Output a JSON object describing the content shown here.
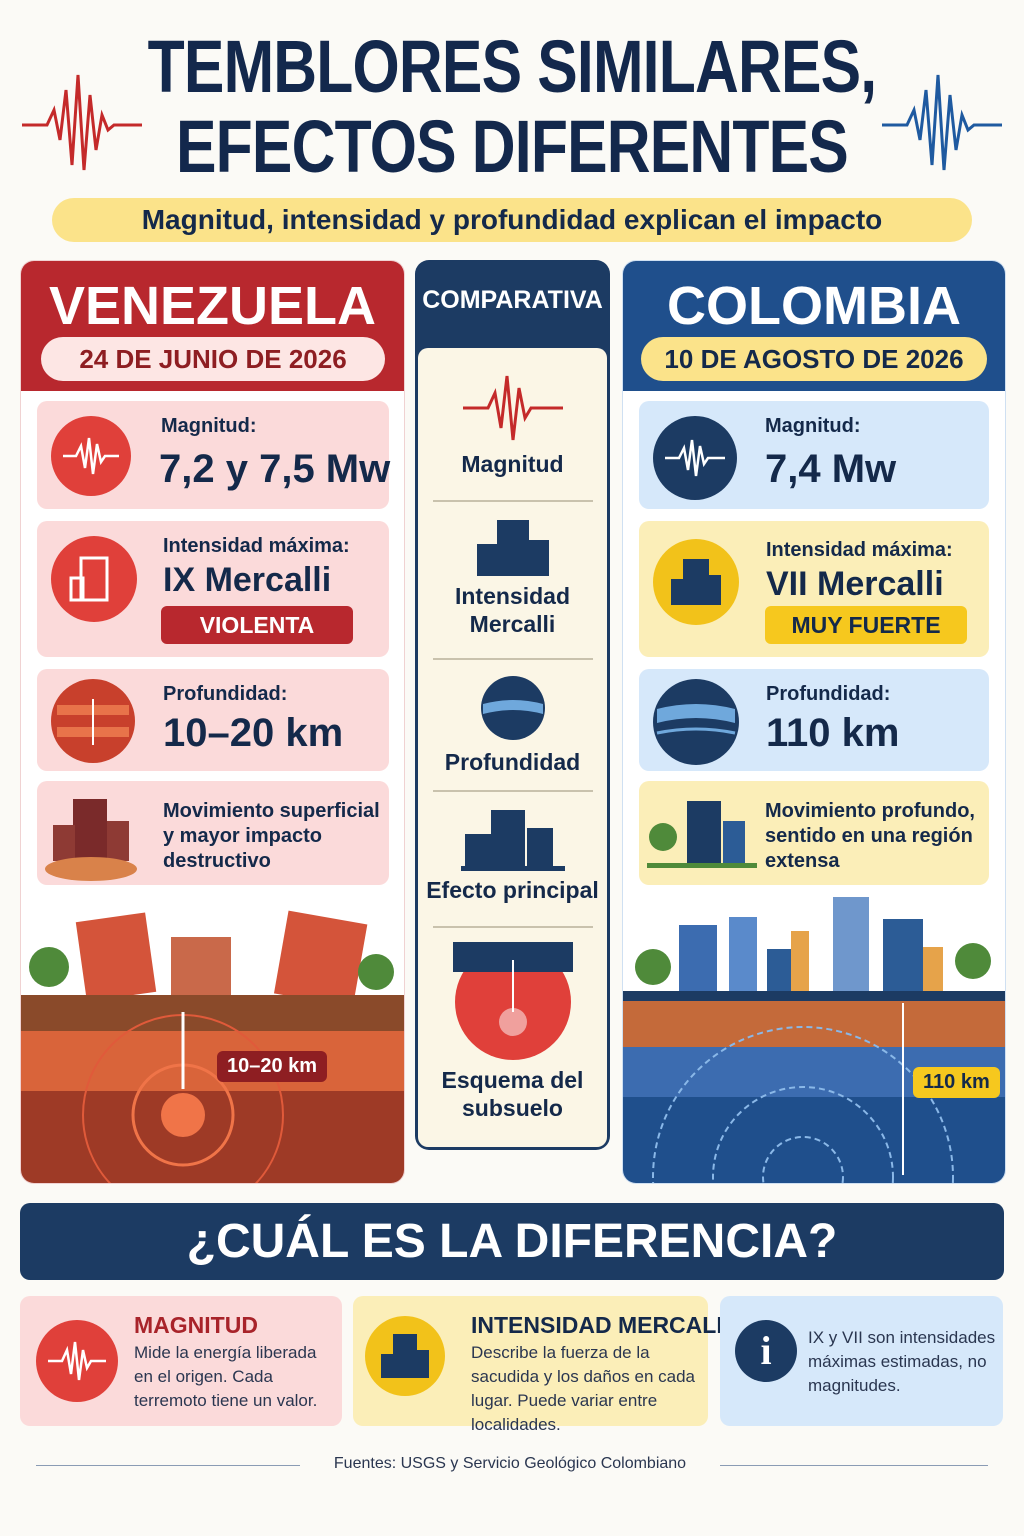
{
  "header": {
    "title_line1": "TEMBLORES SIMILARES,",
    "title_line2": "EFECTOS DIFERENTES",
    "subtitle": "Magnitud, intensidad y profundidad explican el impacto"
  },
  "venezuela": {
    "name": "VENEZUELA",
    "date": "24 DE JUNIO DE 2026",
    "magnitude_label": "Magnitud:",
    "magnitude": "7,2 y 7,5 Mw",
    "intensity_label": "Intensidad máxima:",
    "intensity": "IX Mercalli",
    "intensity_badge": "VIOLENTA",
    "depth_label": "Profundidad:",
    "depth": "10–20 km",
    "effect": "Movimiento superficial y mayor impacto destructivo",
    "scheme_label": "10–20 km"
  },
  "comparison": {
    "title": "COMPARATIVA",
    "rows": [
      "Magnitud",
      "Intensidad Mercalli",
      "Profundidad",
      "Efecto principal",
      "Esquema del subsuelo"
    ]
  },
  "colombia": {
    "name": "COLOMBIA",
    "date": "10 DE AGOSTO DE 2026",
    "magnitude_label": "Magnitud:",
    "magnitude": "7,4 Mw",
    "intensity_label": "Intensidad máxima:",
    "intensity": "VII Mercalli",
    "intensity_badge": "MUY FUERTE",
    "depth_label": "Profundidad:",
    "depth": "110 km",
    "effect": "Movimiento profundo, sentido en una región extensa",
    "scheme_label": "110 km"
  },
  "difference": {
    "title": "¿CUÁL ES LA DIFERENCIA?",
    "cards": [
      {
        "title": "MAGNITUD",
        "text": "Mide la energía liberada en el origen. Cada terremoto tiene un valor."
      },
      {
        "title": "INTENSIDAD MERCALLI",
        "text": "Describe la fuerza de la sacudida y los daños en cada lugar. Puede variar entre localidades."
      },
      {
        "text": "IX y VII son intensidades máximas estimadas, no magnitudes."
      }
    ]
  },
  "footer": {
    "source": "Fuentes: USGS y Servicio Geológico Colombiano"
  }
}
